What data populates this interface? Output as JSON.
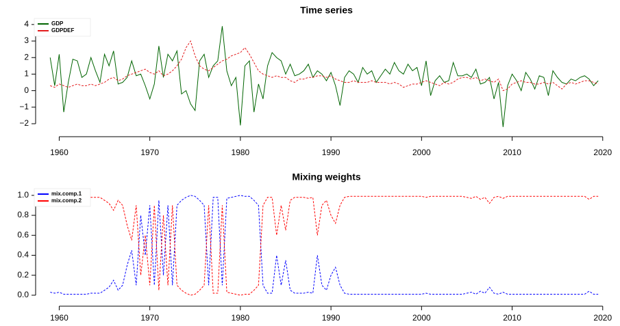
{
  "chart_data": [
    {
      "type": "line",
      "title": "Time series",
      "legend": "topleft",
      "x": [
        1959,
        1959.5,
        1960,
        1960.5,
        1961,
        1961.5,
        1962,
        1962.5,
        1963,
        1963.5,
        1964,
        1964.5,
        1965,
        1965.5,
        1966,
        1966.5,
        1967,
        1967.5,
        1968,
        1968.5,
        1969,
        1969.5,
        1970,
        1970.5,
        1971,
        1971.5,
        1972,
        1972.5,
        1973,
        1973.5,
        1974,
        1974.5,
        1975,
        1975.5,
        1976,
        1976.5,
        1977,
        1977.5,
        1978,
        1978.5,
        1979,
        1979.5,
        1980,
        1980.5,
        1981,
        1981.5,
        1982,
        1982.5,
        1983,
        1983.5,
        1984,
        1984.5,
        1985,
        1985.5,
        1986,
        1986.5,
        1987,
        1987.5,
        1988,
        1988.5,
        1989,
        1989.5,
        1990,
        1990.5,
        1991,
        1991.5,
        1992,
        1992.5,
        1993,
        1993.5,
        1994,
        1994.5,
        1995,
        1995.5,
        1996,
        1996.5,
        1997,
        1997.5,
        1998,
        1998.5,
        1999,
        1999.5,
        2000,
        2000.5,
        2001,
        2001.5,
        2002,
        2002.5,
        2003,
        2003.5,
        2004,
        2004.5,
        2005,
        2005.5,
        2006,
        2006.5,
        2007,
        2007.5,
        2008,
        2008.5,
        2009,
        2009.5,
        2010,
        2010.5,
        2011,
        2011.5,
        2012,
        2012.5,
        2013,
        2013.5,
        2014,
        2014.5,
        2015,
        2015.5,
        2016,
        2016.5,
        2017,
        2017.5,
        2018,
        2018.5,
        2019,
        2019.5
      ],
      "series": [
        {
          "name": "GDP",
          "color": "#006400",
          "dashed": false,
          "values": [
            2.0,
            0.3,
            2.2,
            -1.3,
            0.5,
            1.9,
            1.8,
            0.8,
            1.0,
            2.0,
            1.2,
            0.5,
            2.2,
            1.5,
            2.4,
            0.4,
            0.5,
            0.8,
            1.8,
            0.9,
            1.0,
            0.3,
            -0.5,
            0.4,
            2.7,
            0.8,
            2.2,
            1.8,
            2.4,
            -0.2,
            0.0,
            -0.8,
            -1.2,
            1.8,
            2.2,
            0.8,
            1.5,
            1.8,
            3.9,
            1.2,
            0.3,
            0.8,
            -2.1,
            1.5,
            1.8,
            -1.3,
            0.4,
            -0.5,
            1.5,
            2.3,
            2.0,
            1.8,
            1.0,
            1.6,
            0.9,
            1.0,
            1.2,
            1.6,
            0.8,
            1.2,
            1.0,
            0.6,
            1.1,
            0.3,
            -0.9,
            0.8,
            1.2,
            1.0,
            0.5,
            1.4,
            1.0,
            1.2,
            0.5,
            0.9,
            1.3,
            1.0,
            1.7,
            1.2,
            1.0,
            1.6,
            1.2,
            1.4,
            0.3,
            1.8,
            -0.3,
            0.6,
            0.9,
            0.5,
            0.6,
            1.7,
            0.9,
            0.9,
            1.0,
            0.8,
            1.3,
            0.4,
            0.5,
            0.8,
            -0.5,
            0.5,
            -2.2,
            0.3,
            1.0,
            0.6,
            0.0,
            1.1,
            0.7,
            0.1,
            0.9,
            0.8,
            -0.3,
            1.2,
            0.8,
            0.5,
            0.4,
            0.7,
            0.6,
            0.8,
            0.9,
            0.7,
            0.3,
            0.6
          ]
        },
        {
          "name": "GDPDEF",
          "color": "#e31a1c",
          "dashed": true,
          "values": [
            0.3,
            0.2,
            0.4,
            0.3,
            0.2,
            0.3,
            0.4,
            0.3,
            0.3,
            0.4,
            0.3,
            0.4,
            0.5,
            0.7,
            0.8,
            0.6,
            0.7,
            0.9,
            1.0,
            1.1,
            1.2,
            1.3,
            1.1,
            1.0,
            1.2,
            0.9,
            1.0,
            1.2,
            1.5,
            1.9,
            2.6,
            3.0,
            2.1,
            1.5,
            1.3,
            1.2,
            1.4,
            1.6,
            1.8,
            1.9,
            2.1,
            2.2,
            2.3,
            2.6,
            2.2,
            1.7,
            1.2,
            1.0,
            0.9,
            0.8,
            0.9,
            0.8,
            0.8,
            0.6,
            0.5,
            0.7,
            0.7,
            0.8,
            0.8,
            0.9,
            0.9,
            0.8,
            0.9,
            0.7,
            0.6,
            0.5,
            0.5,
            0.6,
            0.5,
            0.5,
            0.5,
            0.6,
            0.5,
            0.5,
            0.5,
            0.4,
            0.5,
            0.4,
            0.2,
            0.3,
            0.4,
            0.4,
            0.5,
            0.6,
            0.5,
            0.4,
            0.3,
            0.5,
            0.4,
            0.5,
            0.7,
            0.8,
            0.8,
            0.7,
            0.8,
            0.6,
            0.7,
            0.6,
            0.5,
            0.7,
            0.0,
            0.1,
            0.4,
            0.5,
            0.6,
            0.5,
            0.5,
            0.4,
            0.4,
            0.5,
            0.4,
            0.5,
            0.3,
            0.1,
            0.4,
            0.5,
            0.4,
            0.5,
            0.6,
            0.6,
            0.5,
            0.4
          ]
        }
      ],
      "xlim": [
        1958,
        2021
      ],
      "ylim": [
        -2.4,
        4.2
      ],
      "xticks": [
        1960,
        1970,
        1980,
        1990,
        2000,
        2010,
        2020
      ],
      "yticks": [
        {
          "value": -2,
          "label": "−2"
        },
        {
          "value": -1,
          "label": "−1"
        },
        0,
        1,
        2,
        3,
        4
      ]
    },
    {
      "type": "line",
      "title": "Mixing weights",
      "legend": "topleft",
      "x": [
        1959,
        1959.5,
        1960,
        1960.5,
        1961,
        1961.5,
        1962,
        1962.5,
        1963,
        1963.5,
        1964,
        1964.5,
        1965,
        1965.5,
        1966,
        1966.5,
        1967,
        1967.5,
        1968,
        1968.5,
        1969,
        1969.5,
        1970,
        1970.5,
        1971,
        1971.5,
        1972,
        1972.5,
        1973,
        1973.5,
        1974,
        1974.5,
        1975,
        1975.5,
        1976,
        1976.5,
        1977,
        1977.5,
        1978,
        1978.5,
        1979,
        1979.5,
        1980,
        1980.5,
        1981,
        1981.5,
        1982,
        1982.5,
        1983,
        1983.5,
        1984,
        1984.5,
        1985,
        1985.5,
        1986,
        1986.5,
        1987,
        1987.5,
        1988,
        1988.5,
        1989,
        1989.5,
        1990,
        1990.5,
        1991,
        1991.5,
        1992,
        1992.5,
        1993,
        1993.5,
        1994,
        1994.5,
        1995,
        1995.5,
        1996,
        1996.5,
        1997,
        1997.5,
        1998,
        1998.5,
        1999,
        1999.5,
        2000,
        2000.5,
        2001,
        2001.5,
        2002,
        2002.5,
        2003,
        2003.5,
        2004,
        2004.5,
        2005,
        2005.5,
        2006,
        2006.5,
        2007,
        2007.5,
        2008,
        2008.5,
        2009,
        2009.5,
        2010,
        2010.5,
        2011,
        2011.5,
        2012,
        2012.5,
        2013,
        2013.5,
        2014,
        2014.5,
        2015,
        2015.5,
        2016,
        2016.5,
        2017,
        2017.5,
        2018,
        2018.5,
        2019,
        2019.5
      ],
      "series": [
        {
          "name": "mix.comp.1",
          "color": "#0000ff",
          "dashed": true,
          "values": [
            0.03,
            0.02,
            0.03,
            0.01,
            0.01,
            0.01,
            0.01,
            0.01,
            0.01,
            0.02,
            0.02,
            0.02,
            0.05,
            0.08,
            0.15,
            0.05,
            0.1,
            0.3,
            0.45,
            0.1,
            0.8,
            0.4,
            0.9,
            0.1,
            0.95,
            0.2,
            0.9,
            0.1,
            0.9,
            0.95,
            0.98,
            1.0,
            0.99,
            0.95,
            0.9,
            0.1,
            0.98,
            0.98,
            0.1,
            0.97,
            0.98,
            0.99,
            1.0,
            0.99,
            0.99,
            0.95,
            0.9,
            0.1,
            0.02,
            0.02,
            0.4,
            0.1,
            0.35,
            0.05,
            0.02,
            0.02,
            0.02,
            0.03,
            0.02,
            0.4,
            0.1,
            0.05,
            0.2,
            0.28,
            0.1,
            0.02,
            0.01,
            0.01,
            0.01,
            0.01,
            0.01,
            0.01,
            0.01,
            0.01,
            0.01,
            0.01,
            0.01,
            0.01,
            0.01,
            0.01,
            0.01,
            0.01,
            0.01,
            0.02,
            0.01,
            0.01,
            0.01,
            0.01,
            0.01,
            0.01,
            0.01,
            0.01,
            0.02,
            0.03,
            0.01,
            0.04,
            0.02,
            0.08,
            0.02,
            0.01,
            0.03,
            0.01,
            0.01,
            0.01,
            0.01,
            0.01,
            0.01,
            0.01,
            0.01,
            0.01,
            0.01,
            0.01,
            0.01,
            0.01,
            0.01,
            0.01,
            0.01,
            0.01,
            0.01,
            0.04,
            0.01,
            0.01
          ]
        },
        {
          "name": "mix.comp.2",
          "color": "#ff0000",
          "dashed": true,
          "values": [
            0.97,
            0.98,
            0.97,
            0.99,
            0.99,
            0.99,
            0.99,
            0.99,
            0.99,
            0.98,
            0.98,
            0.98,
            0.95,
            0.92,
            0.85,
            0.95,
            0.9,
            0.7,
            0.55,
            0.9,
            0.2,
            0.6,
            0.1,
            0.9,
            0.05,
            0.8,
            0.1,
            0.9,
            0.1,
            0.05,
            0.02,
            0.0,
            0.01,
            0.05,
            0.1,
            0.9,
            0.02,
            0.02,
            0.9,
            0.03,
            0.02,
            0.01,
            0.0,
            0.01,
            0.01,
            0.05,
            0.1,
            0.9,
            0.98,
            0.98,
            0.6,
            0.9,
            0.65,
            0.95,
            0.98,
            0.98,
            0.98,
            0.97,
            0.98,
            0.6,
            0.9,
            0.95,
            0.8,
            0.72,
            0.9,
            0.98,
            0.99,
            0.99,
            0.99,
            0.99,
            0.99,
            0.99,
            0.99,
            0.99,
            0.99,
            0.99,
            0.99,
            0.99,
            0.99,
            0.99,
            0.99,
            0.99,
            0.99,
            0.98,
            0.99,
            0.99,
            0.99,
            0.99,
            0.99,
            0.99,
            0.99,
            0.99,
            0.98,
            0.97,
            0.99,
            0.96,
            0.98,
            0.92,
            0.98,
            0.99,
            0.97,
            0.99,
            0.99,
            0.99,
            0.99,
            0.99,
            0.99,
            0.99,
            0.99,
            0.99,
            0.99,
            0.99,
            0.99,
            0.99,
            0.99,
            0.99,
            0.99,
            0.99,
            0.99,
            0.96,
            0.99,
            0.99
          ]
        }
      ],
      "xlim": [
        1958,
        2021
      ],
      "ylim": [
        -0.04,
        1.04
      ],
      "xticks": [
        1960,
        1970,
        1980,
        1990,
        2000,
        2010,
        2020
      ],
      "yticks": [
        {
          "value": 0,
          "label": "0.0"
        },
        {
          "value": 0.2,
          "label": "0.2"
        },
        {
          "value": 0.4,
          "label": "0.4"
        },
        {
          "value": 0.6,
          "label": "0.6"
        },
        {
          "value": 0.8,
          "label": "0.8"
        },
        {
          "value": 1,
          "label": "1.0"
        }
      ]
    }
  ]
}
